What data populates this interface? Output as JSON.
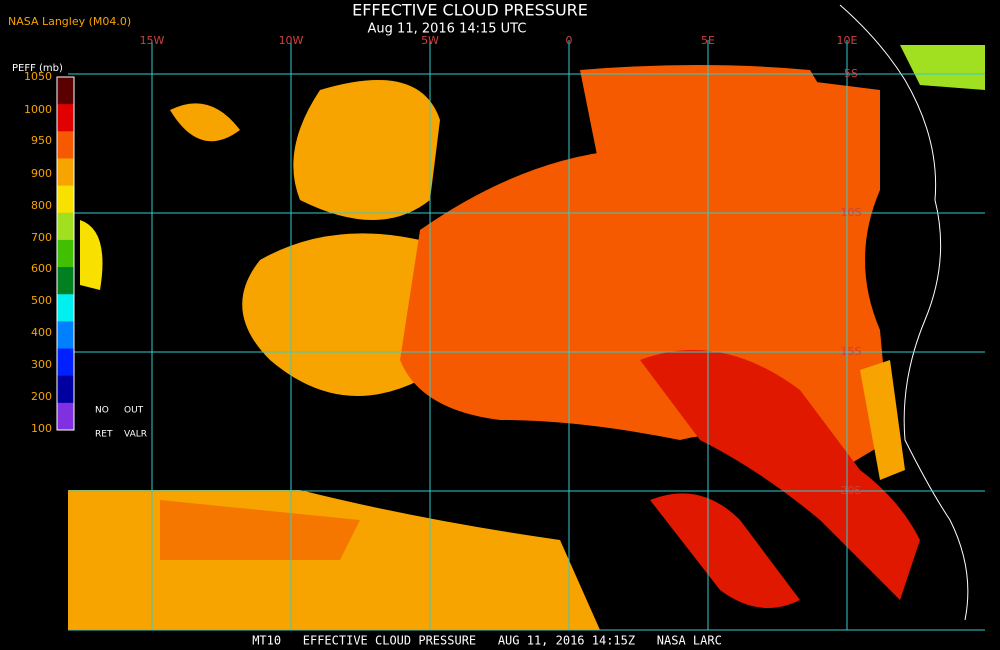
{
  "header": {
    "title": "EFFECTIVE CLOUD PRESSURE",
    "subtitle": "Aug 11, 2016 14:15 UTC",
    "source": "NASA Langley (M04.0)"
  },
  "legend": {
    "label": "PEFF (mb)",
    "ticks": [
      "1050",
      "1000",
      "950",
      "900",
      "800",
      "700",
      "600",
      "500",
      "400",
      "300",
      "200",
      "100"
    ],
    "notes": [
      "NO",
      "OUT",
      "RET",
      "VALR"
    ]
  },
  "map": {
    "longitudes": [
      "15W",
      "10W",
      "5W",
      "0",
      "5E",
      "10E"
    ],
    "latitudes": [
      "5S",
      "10S",
      "15S",
      "20S"
    ]
  },
  "footer": {
    "text": "MT10   EFFECTIVE CLOUD PRESSURE   AUG 11, 2016 14:15Z   NASA LARC"
  }
}
